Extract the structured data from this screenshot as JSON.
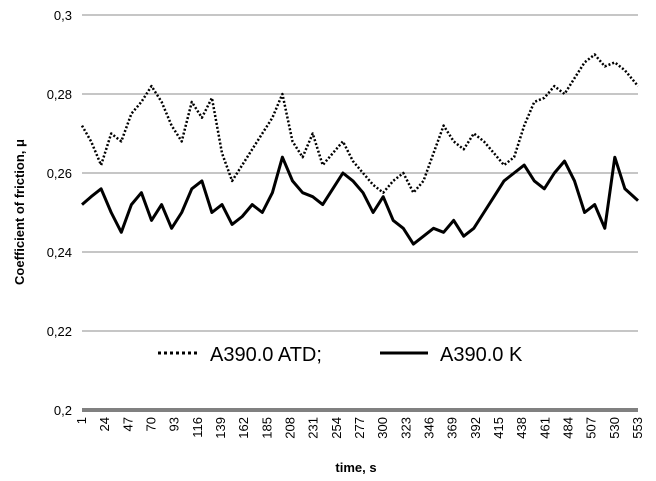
{
  "chart_data": {
    "type": "line",
    "xlabel": "time, s",
    "ylabel": "Coefficient of friction, μ",
    "ylim": [
      0.2,
      0.3
    ],
    "yticks": [
      "0,2",
      "0,22",
      "0,24",
      "0,26",
      "0,28",
      "0,3"
    ],
    "ytick_values": [
      0.2,
      0.22,
      0.24,
      0.26,
      0.28,
      0.3
    ],
    "xlim": [
      1,
      553
    ],
    "xticks": [
      "1",
      "24",
      "47",
      "70",
      "93",
      "116",
      "139",
      "162",
      "185",
      "208",
      "231",
      "254",
      "277",
      "300",
      "323",
      "346",
      "369",
      "392",
      "415",
      "438",
      "461",
      "484",
      "507",
      "530",
      "553"
    ],
    "grid": "horizontal",
    "legend_position": "center",
    "series": [
      {
        "name": "A390.0 ATD;",
        "style": "dotted",
        "color": "#000000",
        "x": [
          1,
          10,
          20,
          30,
          40,
          50,
          60,
          70,
          80,
          90,
          100,
          110,
          120,
          130,
          140,
          150,
          160,
          170,
          180,
          190,
          200,
          210,
          220,
          230,
          240,
          250,
          260,
          270,
          280,
          290,
          300,
          310,
          320,
          330,
          340,
          350,
          360,
          370,
          380,
          390,
          400,
          410,
          420,
          430,
          440,
          450,
          460,
          470,
          480,
          490,
          500,
          510,
          520,
          530,
          540,
          553
        ],
        "y": [
          0.272,
          0.268,
          0.262,
          0.27,
          0.268,
          0.275,
          0.278,
          0.282,
          0.278,
          0.272,
          0.268,
          0.278,
          0.274,
          0.279,
          0.265,
          0.258,
          0.262,
          0.266,
          0.27,
          0.274,
          0.28,
          0.268,
          0.264,
          0.27,
          0.262,
          0.265,
          0.268,
          0.263,
          0.26,
          0.257,
          0.255,
          0.258,
          0.26,
          0.255,
          0.258,
          0.265,
          0.272,
          0.268,
          0.266,
          0.27,
          0.268,
          0.265,
          0.262,
          0.264,
          0.272,
          0.278,
          0.279,
          0.282,
          0.28,
          0.284,
          0.288,
          0.29,
          0.287,
          0.288,
          0.286,
          0.282
        ]
      },
      {
        "name": "A390.0 K",
        "style": "solid",
        "color": "#000000",
        "x": [
          1,
          10,
          20,
          30,
          40,
          50,
          60,
          70,
          80,
          90,
          100,
          110,
          120,
          130,
          140,
          150,
          160,
          170,
          180,
          190,
          200,
          210,
          220,
          230,
          240,
          250,
          260,
          270,
          280,
          290,
          300,
          310,
          320,
          330,
          340,
          350,
          360,
          370,
          380,
          390,
          400,
          410,
          420,
          430,
          440,
          450,
          460,
          470,
          480,
          490,
          500,
          510,
          520,
          530,
          540,
          553
        ],
        "y": [
          0.252,
          0.254,
          0.256,
          0.25,
          0.245,
          0.252,
          0.255,
          0.248,
          0.252,
          0.246,
          0.25,
          0.256,
          0.258,
          0.25,
          0.252,
          0.247,
          0.249,
          0.252,
          0.25,
          0.255,
          0.264,
          0.258,
          0.255,
          0.254,
          0.252,
          0.256,
          0.26,
          0.258,
          0.255,
          0.25,
          0.254,
          0.248,
          0.246,
          0.242,
          0.244,
          0.246,
          0.245,
          0.248,
          0.244,
          0.246,
          0.25,
          0.254,
          0.258,
          0.26,
          0.262,
          0.258,
          0.256,
          0.26,
          0.263,
          0.258,
          0.25,
          0.252,
          0.246,
          0.264,
          0.256,
          0.253
        ]
      }
    ]
  }
}
